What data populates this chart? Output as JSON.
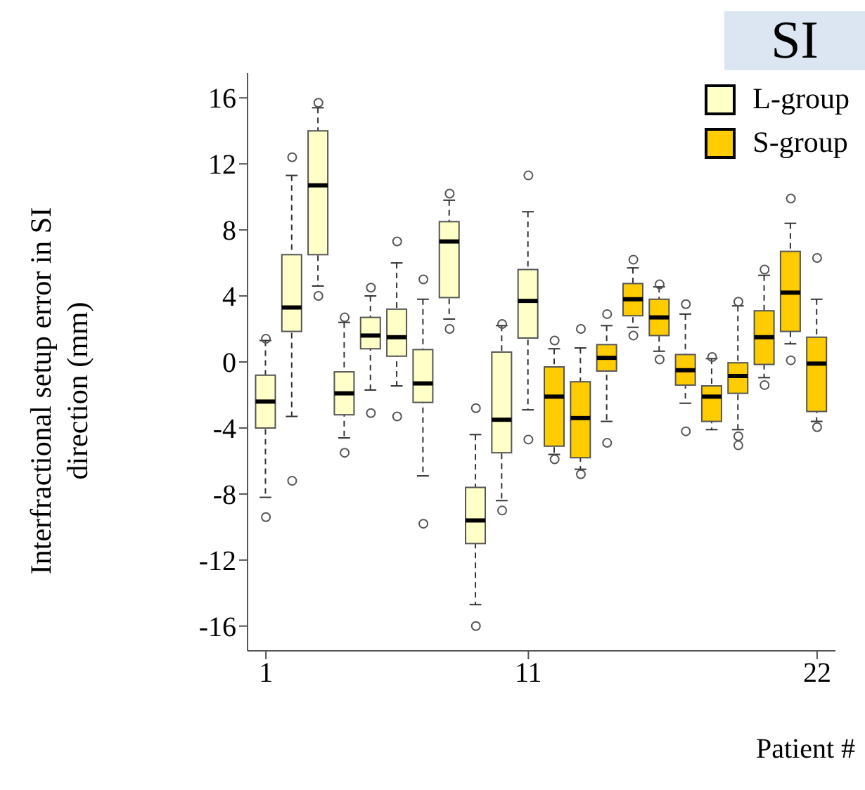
{
  "chart_data": {
    "type": "box",
    "title": "SI",
    "xlabel": "Patient #",
    "ylabel": "Interfractional setup error in SI direction (mm)",
    "categories": [
      "1",
      null,
      null,
      null,
      null,
      null,
      null,
      null,
      null,
      null,
      "11",
      null,
      null,
      null,
      null,
      null,
      null,
      null,
      null,
      null,
      null,
      "22"
    ],
    "ylim": [
      -17.5,
      17.5
    ],
    "yticks": [
      -16,
      -12,
      -8,
      -4,
      0,
      4,
      8,
      12,
      16
    ],
    "legend": "top right",
    "series": [
      {
        "name": "L-group",
        "color": "#ffffc8",
        "boxes": [
          {
            "low": -8.2,
            "q1": -4.0,
            "median": -2.4,
            "q3": -0.8,
            "high": 1.3,
            "outliers": [
              1.4,
              -9.4
            ]
          },
          {
            "low": -3.3,
            "q1": 1.85,
            "median": 3.3,
            "q3": 6.5,
            "high": 11.3,
            "outliers": [
              12.4,
              -7.2
            ]
          },
          {
            "low": 4.6,
            "q1": 6.5,
            "median": 10.7,
            "q3": 14.0,
            "high": 15.4,
            "outliers": [
              15.7,
              4.0
            ]
          },
          {
            "low": -4.6,
            "q1": -3.2,
            "median": -1.9,
            "q3": -0.6,
            "high": 2.4,
            "outliers": [
              2.7,
              -5.5
            ]
          },
          {
            "low": -1.7,
            "q1": 0.8,
            "median": 1.6,
            "q3": 2.7,
            "high": 4.0,
            "outliers": [
              4.5,
              -3.1
            ]
          },
          {
            "low": -1.45,
            "q1": 0.35,
            "median": 1.5,
            "q3": 3.2,
            "high": 6.0,
            "outliers": [
              7.3,
              -3.3
            ]
          },
          {
            "low": -6.9,
            "q1": -2.45,
            "median": -1.3,
            "q3": 0.75,
            "high": 3.8,
            "outliers": [
              5.0,
              -9.8
            ]
          },
          {
            "low": 2.6,
            "q1": 3.9,
            "median": 7.3,
            "q3": 8.5,
            "high": 9.8,
            "outliers": [
              10.2,
              2.0
            ]
          },
          {
            "low": -14.7,
            "q1": -11.0,
            "median": -9.6,
            "q3": -7.6,
            "high": -4.4,
            "outliers": [
              -2.8,
              -16.0
            ]
          },
          {
            "low": -8.4,
            "q1": -5.5,
            "median": -3.5,
            "q3": 0.6,
            "high": 2.2,
            "outliers": [
              2.3,
              -9.0
            ]
          },
          {
            "low": -2.9,
            "q1": 1.45,
            "median": 3.7,
            "q3": 5.6,
            "high": 9.1,
            "outliers": [
              11.3,
              -4.7
            ]
          },
          null,
          null,
          null,
          null,
          null,
          null,
          null,
          null,
          null,
          null,
          null
        ]
      },
      {
        "name": "S-group",
        "color": "#ffcc00",
        "boxes": [
          null,
          null,
          null,
          null,
          null,
          null,
          null,
          null,
          null,
          null,
          null,
          {
            "low": -5.6,
            "q1": -5.1,
            "median": -2.1,
            "q3": -0.3,
            "high": 0.8,
            "outliers": [
              1.3,
              -5.9
            ]
          },
          {
            "low": -6.5,
            "q1": -5.8,
            "median": -3.4,
            "q3": -1.2,
            "high": 0.85,
            "outliers": [
              2.0,
              -6.8
            ]
          },
          {
            "low": -3.6,
            "q1": -0.55,
            "median": 0.25,
            "q3": 1.05,
            "high": 2.2,
            "outliers": [
              2.9,
              -4.9
            ]
          },
          {
            "low": 2.1,
            "q1": 2.8,
            "median": 3.8,
            "q3": 4.75,
            "high": 5.7,
            "outliers": [
              6.2,
              1.6
            ]
          },
          {
            "low": 0.65,
            "q1": 1.6,
            "median": 2.7,
            "q3": 3.8,
            "high": 4.55,
            "outliers": [
              4.7,
              0.15
            ]
          },
          {
            "low": -2.5,
            "q1": -1.4,
            "median": -0.5,
            "q3": 0.45,
            "high": 2.9,
            "outliers": [
              3.5,
              -4.2
            ]
          },
          {
            "low": -4.1,
            "q1": -3.6,
            "median": -2.1,
            "q3": -1.45,
            "high": 0.2,
            "outliers": [
              0.3
            ]
          },
          {
            "low": -4.1,
            "q1": -1.9,
            "median": -0.85,
            "q3": -0.05,
            "high": 3.4,
            "outliers": [
              3.65,
              -4.5,
              -5.05
            ]
          },
          {
            "low": -0.95,
            "q1": -0.15,
            "median": 1.5,
            "q3": 3.1,
            "high": 5.25,
            "outliers": [
              5.6,
              -1.4
            ]
          },
          {
            "low": 1.1,
            "q1": 1.85,
            "median": 4.2,
            "q3": 6.7,
            "high": 8.4,
            "outliers": [
              9.9,
              0.1
            ]
          },
          {
            "low": -3.6,
            "q1": -3.0,
            "median": -0.1,
            "q3": 1.5,
            "high": 3.8,
            "outliers": [
              6.3,
              -3.95
            ]
          }
        ]
      }
    ]
  }
}
